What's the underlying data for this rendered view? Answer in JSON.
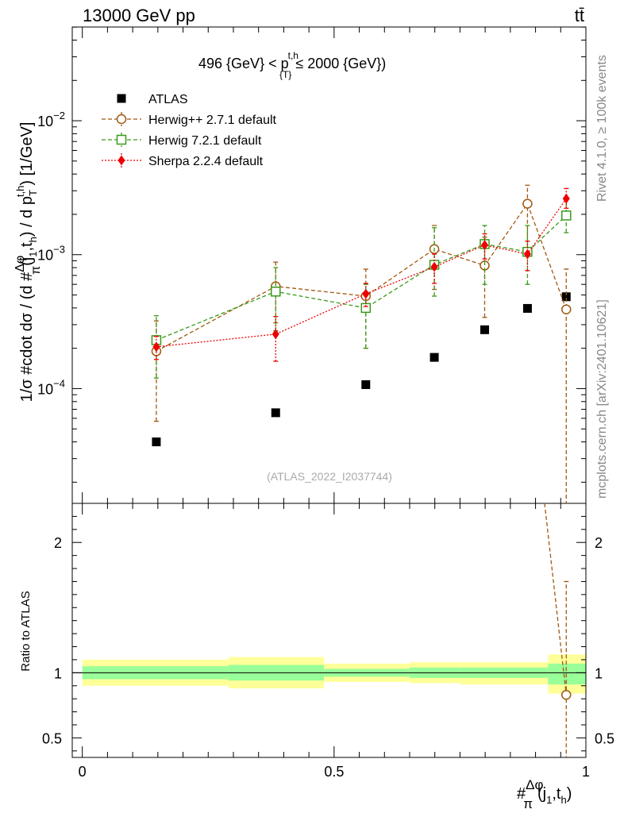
{
  "header": {
    "energy_label": "13000 GeV pp",
    "process_label": "tt̄"
  },
  "side_labels": {
    "rivet": "Rivet 4.1.0, ≥ 100k events",
    "mcplots": "mcplots.cern.ch [arXiv:2401.10621]"
  },
  "colors": {
    "atlas": "#000000",
    "herwigpp": "#a0580f",
    "herwig7": "#3a9a1a",
    "sherpa": "#ee0000",
    "band_inner": "#99ff99",
    "band_outer": "#ffff99"
  },
  "chart_data": [
    {
      "type": "scatter",
      "panel": "main",
      "title": "496 {GeV} < p_{T}^{t,h} ≤ 2000 {GeV})",
      "title_parts": {
        "pre": "496 {GeV} < p",
        "sup": "t,h",
        "sub": "{T}",
        "post": " ≤ 2000 {GeV})"
      },
      "ylabel": "1/σ #cdot dσ / (d #Δφ/π(j_1,t_h) / d p_T^{t,h}) [1/GeV]",
      "ylabel_parts": {
        "a": "1/σ #cdot dσ / (d #",
        "frac_num": "Δφ",
        "frac_den": "π",
        "b": "(j",
        "b_sub": "1",
        "c": ",t",
        "c_sub": "h",
        "d": ") / d p",
        "e_sub": "T",
        "e_sup": "t,h",
        "f": ") [1/GeV]"
      },
      "yscale": "log",
      "ylim": [
        1.39e-05,
        0.0501
      ],
      "xlim": [
        -0.02,
        1.0
      ],
      "y_ticks": [
        {
          "value": 0.0001,
          "base": "10",
          "exp": "−4"
        },
        {
          "value": 0.001,
          "base": "10",
          "exp": "−3"
        },
        {
          "value": 0.01,
          "base": "10",
          "exp": "−2"
        }
      ],
      "watermark": "(ATLAS_2022_I2037744)",
      "legend": [
        {
          "key": "atlas",
          "label": "ATLAS"
        },
        {
          "key": "herwigpp",
          "label": "Herwig++ 2.7.1 default"
        },
        {
          "key": "herwig7",
          "label": "Herwig 7.2.1 default"
        },
        {
          "key": "sherpa",
          "label": "Sherpa 2.2.4 default"
        }
      ],
      "series": [
        {
          "key": "atlas",
          "name": "ATLAS",
          "marker": "square-filled",
          "x": [
            0.147,
            0.384,
            0.563,
            0.699,
            0.799,
            0.884,
            0.961
          ],
          "y": [
            4e-05,
            6.6e-05,
            0.000107,
            0.000171,
            0.000275,
            0.000397,
            0.000485
          ],
          "yerr_lo": [
            0,
            0,
            0,
            0,
            0,
            0,
            0
          ],
          "yerr_hi": [
            0,
            0,
            0,
            0,
            0,
            0,
            0
          ]
        },
        {
          "key": "herwigpp",
          "name": "Herwig++ 2.7.1 default",
          "marker": "circle-open",
          "line": "dashed",
          "x": [
            0.147,
            0.384,
            0.563,
            0.699,
            0.799,
            0.884,
            0.961
          ],
          "y": [
            0.00019,
            0.00058,
            0.00049,
            0.0011,
            0.00083,
            0.0024,
            0.00039
          ],
          "yerr_lo": [
            0.000133,
            0.00027,
            0.00029,
            0.00055,
            0.00049,
            0.0013,
            0.00039
          ],
          "yerr_hi": [
            0.00013,
            0.0003,
            0.00029,
            0.00055,
            0.00052,
            0.0009,
            0.00039
          ]
        },
        {
          "key": "herwig7",
          "name": "Herwig 7.2.1 default",
          "marker": "square-open",
          "line": "dashed",
          "x": [
            0.147,
            0.384,
            0.563,
            0.699,
            0.799,
            0.884,
            0.961
          ],
          "y": [
            0.00023,
            0.00053,
            0.0004,
            0.00084,
            0.0012,
            0.00105,
            0.00196
          ],
          "yerr_lo": [
            0.00011,
            0.00026,
            0.0002,
            0.00035,
            0.0006,
            0.00045,
            0.0005
          ],
          "yerr_hi": [
            0.00012,
            0.00027,
            0.0002,
            0.00075,
            0.00045,
            0.0006,
            0.0006
          ]
        },
        {
          "key": "sherpa",
          "name": "Sherpa 2.2.4 default",
          "marker": "diamond-filled",
          "line": "dotted",
          "x": [
            0.147,
            0.384,
            0.563,
            0.699,
            0.799,
            0.884,
            0.961
          ],
          "y": [
            0.000205,
            0.000255,
            0.00051,
            0.00081,
            0.00118,
            0.00101,
            0.00262
          ],
          "yerr_lo": [
            4e-05,
            9.5e-05,
            0.0001,
            0.0002,
            0.00025,
            0.00025,
            0.0004
          ],
          "yerr_hi": [
            4e-05,
            9e-05,
            0.0001,
            0.0002,
            0.00025,
            0.00025,
            0.0005
          ]
        }
      ]
    },
    {
      "type": "scatter",
      "panel": "ratio",
      "ylabel": "Ratio to ATLAS",
      "yscale": "linear",
      "ylim": [
        0.35,
        2.3
      ],
      "xlim": [
        -0.02,
        1.0
      ],
      "y_ticks": [
        0.5,
        1,
        2
      ],
      "y_tick_labels": [
        "0.5",
        "1",
        "2"
      ],
      "x_ticks": [
        0,
        0.5,
        1
      ],
      "x_tick_labels": [
        "0",
        "0.5",
        "1"
      ],
      "xlabel": "#Δφ/π(j_1,t_h)",
      "xlabel_parts": {
        "a": "#",
        "frac_num": "Δφ",
        "frac_den": "π",
        "b": "(j",
        "b_sub": "1",
        "c": ",t",
        "c_sub": "h",
        "d": ")"
      },
      "bands": [
        {
          "x0": 0.0,
          "x1": 0.29,
          "inner": [
            0.95,
            1.05
          ],
          "outer": [
            0.9,
            1.1
          ]
        },
        {
          "x0": 0.29,
          "x1": 0.48,
          "inner": [
            0.94,
            1.06
          ],
          "outer": [
            0.88,
            1.12
          ]
        },
        {
          "x0": 0.48,
          "x1": 0.65,
          "inner": [
            0.97,
            1.03
          ],
          "outer": [
            0.93,
            1.07
          ]
        },
        {
          "x0": 0.65,
          "x1": 0.75,
          "inner": [
            0.96,
            1.04
          ],
          "outer": [
            0.92,
            1.08
          ]
        },
        {
          "x0": 0.75,
          "x1": 0.84,
          "inner": [
            0.96,
            1.04
          ],
          "outer": [
            0.91,
            1.08
          ]
        },
        {
          "x0": 0.84,
          "x1": 0.925,
          "inner": [
            0.96,
            1.04
          ],
          "outer": [
            0.91,
            1.08
          ]
        },
        {
          "x0": 0.925,
          "x1": 1.0,
          "inner": [
            0.91,
            1.07
          ],
          "outer": [
            0.84,
            1.14
          ]
        }
      ],
      "series": [
        {
          "key": "herwigpp",
          "name": "Herwig++ 2.7.1 default",
          "marker": "circle-open",
          "line": "dashed",
          "x": [
            0.961
          ],
          "y": [
            0.83
          ],
          "yerr_lo": [
            0.5
          ],
          "yerr_hi": [
            0.87
          ],
          "incoming_from": [
            0.918,
            2.3
          ]
        }
      ]
    }
  ]
}
